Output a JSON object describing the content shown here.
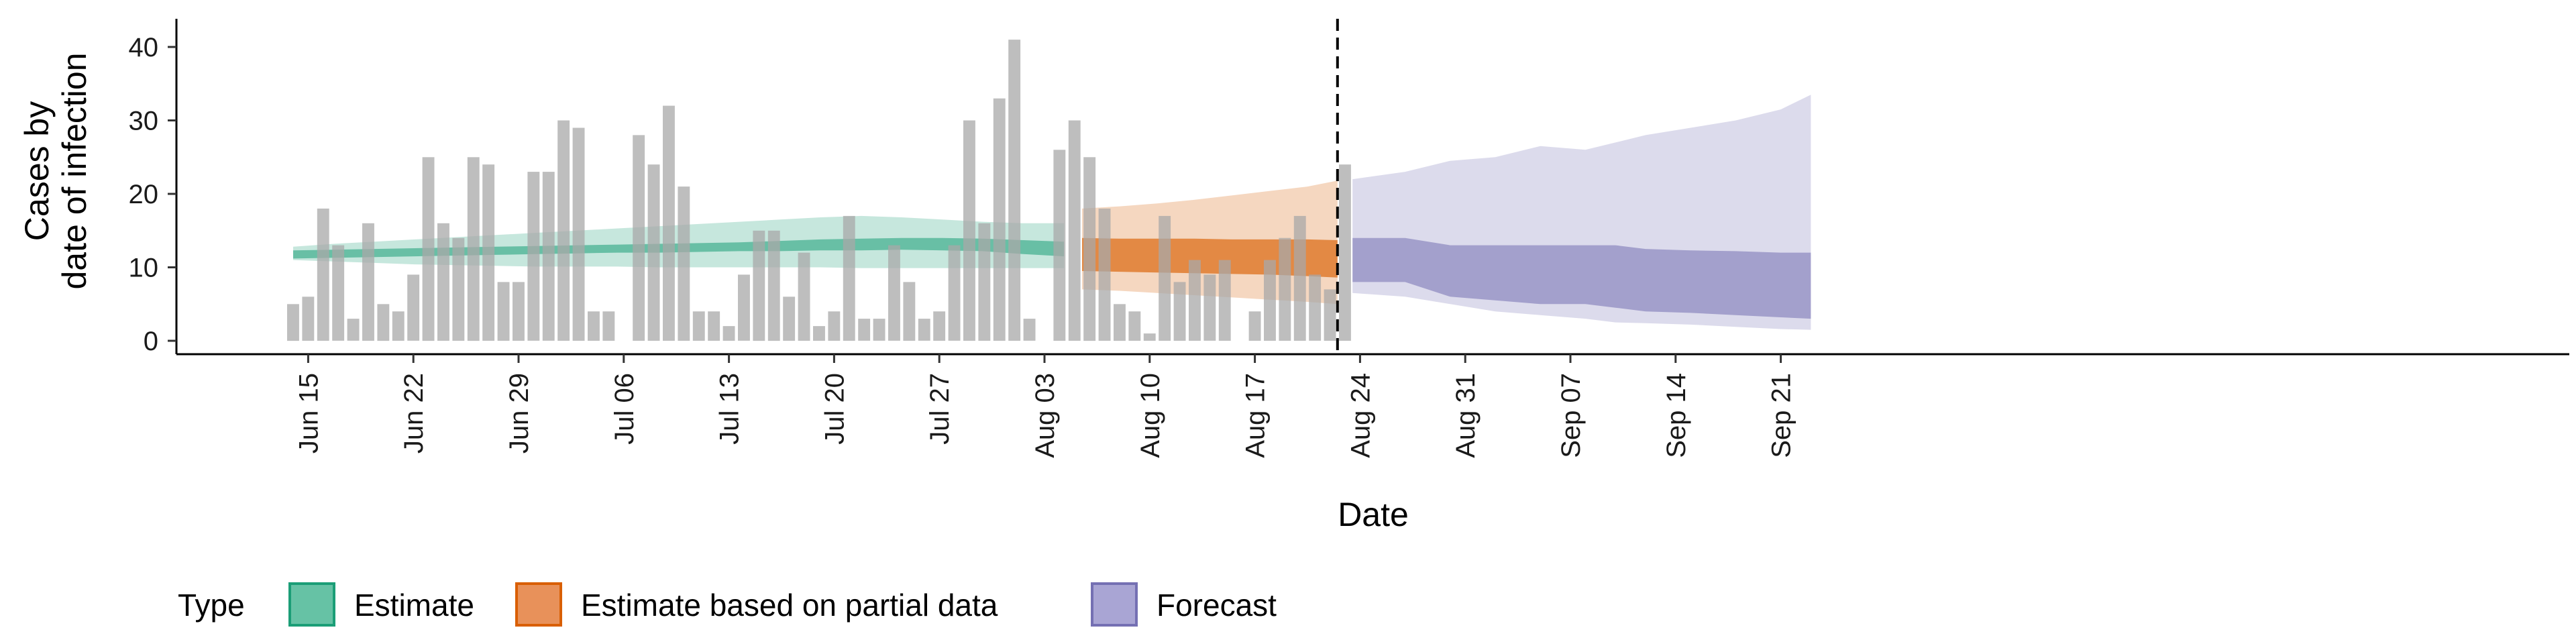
{
  "colors": {
    "estimate": "#1b9e77",
    "partial": "#d95f02",
    "forecast": "#7570b3",
    "reported": "#bdbdbd"
  },
  "legend": {
    "title": "Type",
    "items": [
      {
        "label": "Estimate",
        "color": "#66c2a5",
        "border": "#1b9e77"
      },
      {
        "label": "Estimate based on partial data",
        "color": "#e8915a",
        "border": "#d95f02"
      },
      {
        "label": "Forecast",
        "color": "#a9a5d4",
        "border": "#7570b3"
      }
    ]
  },
  "chart_data": {
    "type": "bar",
    "xlabel": "Date",
    "ylabel": [
      "Cases by",
      "date of infection"
    ],
    "ylim": [
      0,
      43
    ],
    "yticks": [
      0,
      10,
      20,
      30,
      40
    ],
    "x_start": "2020-06-14",
    "date_ticks": [
      "Jun 15",
      "Jun 22",
      "Jun 29",
      "Jul 06",
      "Jul 13",
      "Jul 20",
      "Jul 27",
      "Aug 03",
      "Aug 10",
      "Aug 17",
      "Aug 24",
      "Aug 31",
      "Sep 07",
      "Sep 14",
      "Sep 21"
    ],
    "date_tick_day_index": [
      1,
      8,
      15,
      22,
      29,
      36,
      43,
      50,
      57,
      64,
      71,
      78,
      85,
      92,
      99
    ],
    "forecast_start_line_day": 69.5,
    "reported_cases": [
      5,
      6,
      18,
      13,
      3,
      16,
      5,
      4,
      9,
      25,
      16,
      14,
      25,
      24,
      8,
      8,
      23,
      23,
      30,
      29,
      4,
      4,
      0,
      28,
      24,
      32,
      21,
      4,
      4,
      2,
      9,
      15,
      15,
      6,
      12,
      2,
      4,
      17,
      3,
      3,
      13,
      8,
      3,
      4,
      13,
      30,
      16,
      33,
      41,
      3,
      0,
      26,
      30,
      25,
      18,
      5,
      4,
      1,
      17,
      8,
      11,
      9,
      11,
      0,
      4,
      11,
      14,
      17,
      9,
      7,
      24
    ],
    "series": [
      {
        "name": "Estimate",
        "start_day": 0,
        "median": [
          11.8,
          11.9,
          12.0,
          12.1,
          12.2,
          12.3,
          12.4,
          12.5,
          12.6,
          12.7,
          12.8,
          12.9,
          13.0,
          13.1,
          13.2,
          13.3,
          13.3,
          13.2,
          13.1,
          13.0
        ],
        "inner_lo": [
          11.2,
          11.3,
          11.4,
          11.5,
          11.6,
          11.7,
          11.8,
          11.9,
          12.0,
          12.0,
          12.1,
          12.2,
          12.2,
          12.3,
          12.3,
          12.4,
          12.3,
          12.2,
          11.8,
          11.5
        ],
        "inner_hi": [
          12.3,
          12.4,
          12.5,
          12.6,
          12.7,
          12.8,
          12.9,
          13.0,
          13.1,
          13.2,
          13.3,
          13.4,
          13.6,
          13.8,
          13.9,
          14.0,
          14.0,
          13.9,
          13.7,
          13.5
        ],
        "outer_lo": [
          11.0,
          10.8,
          10.6,
          10.4,
          10.3,
          10.2,
          10.1,
          10.1,
          10.1,
          10.0,
          10.0,
          10.0,
          10.0,
          10.0,
          9.9,
          9.9,
          9.9,
          9.9,
          9.9,
          9.9
        ],
        "outer_hi": [
          12.8,
          13.2,
          13.5,
          13.8,
          14.1,
          14.4,
          14.7,
          15.0,
          15.3,
          15.6,
          15.9,
          16.2,
          16.5,
          16.8,
          17.0,
          16.8,
          16.5,
          16.2,
          16.0,
          16.0
        ],
        "day_step": 2.7
      },
      {
        "name": "Estimate based on partial data",
        "start_day": 52.5,
        "days": [
          52.5,
          55,
          57.5,
          60,
          62.5,
          65,
          67.5,
          69.5
        ],
        "inner_lo": [
          9.5,
          9.4,
          9.3,
          9.2,
          9.1,
          9.0,
          8.8,
          8.6
        ],
        "inner_hi": [
          14.0,
          13.9,
          13.9,
          13.9,
          13.8,
          13.8,
          13.8,
          13.7
        ],
        "outer_lo": [
          7.0,
          6.8,
          6.5,
          6.2,
          5.9,
          5.6,
          5.3,
          5.0
        ],
        "outer_hi": [
          18.0,
          18.3,
          18.7,
          19.2,
          19.8,
          20.4,
          21.0,
          21.8
        ]
      },
      {
        "name": "Forecast",
        "days": [
          70.5,
          74,
          77,
          80,
          83,
          86,
          88,
          90,
          93,
          96,
          99,
          101
        ],
        "inner_lo": [
          8.0,
          8.0,
          6.0,
          5.5,
          5.0,
          5.0,
          4.5,
          4.0,
          3.8,
          3.5,
          3.2,
          3.0
        ],
        "inner_hi": [
          14.0,
          14.0,
          13.0,
          13.0,
          13.0,
          13.0,
          13.0,
          12.5,
          12.3,
          12.2,
          12.0,
          12.0
        ],
        "outer_lo": [
          6.5,
          6.0,
          5.0,
          4.0,
          3.5,
          3.0,
          2.5,
          2.4,
          2.2,
          1.9,
          1.6,
          1.5
        ],
        "outer_hi": [
          22.0,
          23.0,
          24.5,
          25.0,
          26.5,
          26.0,
          27.0,
          28.0,
          29.0,
          30.0,
          31.5,
          33.5
        ]
      }
    ]
  }
}
